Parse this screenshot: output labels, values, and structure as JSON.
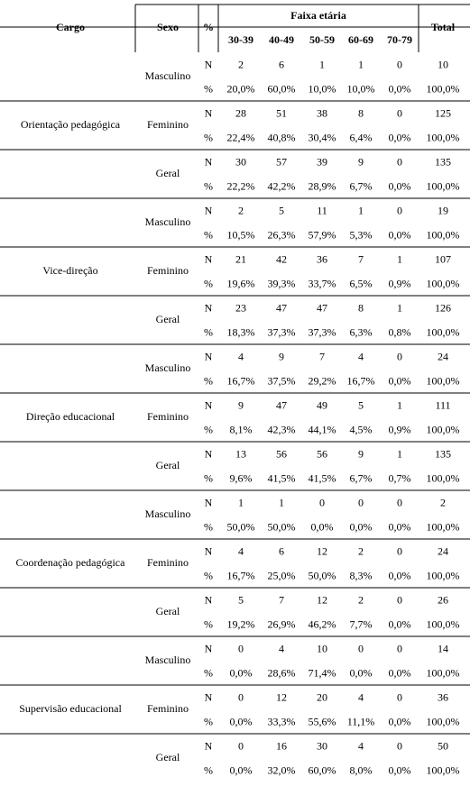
{
  "header": {
    "cargo": "Cargo",
    "sexo": "Sexo",
    "measure": "%",
    "age_group": "Faixa etária",
    "age_ranges": [
      "30-39",
      "40-49",
      "50-59",
      "60-69",
      "70-79"
    ],
    "total": "Total"
  },
  "groups": [
    {
      "cargo": "Orientação pedagógica",
      "subgroups": [
        {
          "sexo": "Masculino",
          "rows": [
            {
              "measure": "N",
              "cells": [
                2,
                6,
                1,
                1,
                0,
                10
              ]
            },
            {
              "measure": "%",
              "cells": [
                "20,0%",
                "60,0%",
                "10,0%",
                "10,0%",
                "0,0%",
                "100,0%"
              ]
            }
          ]
        },
        {
          "sexo": "Feminino",
          "rows": [
            {
              "measure": "N",
              "cells": [
                28,
                51,
                38,
                8,
                0,
                125
              ]
            },
            {
              "measure": "%",
              "cells": [
                "22,4%",
                "40,8%",
                "30,4%",
                "6,4%",
                "0,0%",
                "100,0%"
              ]
            }
          ]
        },
        {
          "sexo": "Geral",
          "rows": [
            {
              "measure": "N",
              "cells": [
                30,
                57,
                39,
                9,
                0,
                135
              ]
            },
            {
              "measure": "%",
              "cells": [
                "22,2%",
                "42,2%",
                "28,9%",
                "6,7%",
                "0,0%",
                "100,0%"
              ]
            }
          ]
        }
      ]
    },
    {
      "cargo": "Vice-direção",
      "subgroups": [
        {
          "sexo": "Masculino",
          "rows": [
            {
              "measure": "N",
              "cells": [
                2,
                5,
                11,
                1,
                0,
                19
              ]
            },
            {
              "measure": "%",
              "cells": [
                "10,5%",
                "26,3%",
                "57,9%",
                "5,3%",
                "0,0%",
                "100,0%"
              ]
            }
          ]
        },
        {
          "sexo": "Feminino",
          "rows": [
            {
              "measure": "N",
              "cells": [
                21,
                42,
                36,
                7,
                1,
                107
              ]
            },
            {
              "measure": "%",
              "cells": [
                "19,6%",
                "39,3%",
                "33,7%",
                "6,5%",
                "0,9%",
                "100,0%"
              ]
            }
          ]
        },
        {
          "sexo": "Geral",
          "rows": [
            {
              "measure": "N",
              "cells": [
                23,
                47,
                47,
                8,
                1,
                126
              ]
            },
            {
              "measure": "%",
              "cells": [
                "18,3%",
                "37,3%",
                "37,3%",
                "6,3%",
                "0,8%",
                "100,0%"
              ]
            }
          ]
        }
      ]
    },
    {
      "cargo": "Direção educacional",
      "subgroups": [
        {
          "sexo": "Masculino",
          "rows": [
            {
              "measure": "N",
              "cells": [
                4,
                9,
                7,
                4,
                0,
                24
              ]
            },
            {
              "measure": "%",
              "cells": [
                "16,7%",
                "37,5%",
                "29,2%",
                "16,7%",
                "0,0%",
                "100,0%"
              ]
            }
          ]
        },
        {
          "sexo": "Feminino",
          "rows": [
            {
              "measure": "N",
              "cells": [
                9,
                47,
                49,
                5,
                1,
                111
              ]
            },
            {
              "measure": "%",
              "cells": [
                "8,1%",
                "42,3%",
                "44,1%",
                "4,5%",
                "0,9%",
                "100,0%"
              ]
            }
          ]
        },
        {
          "sexo": "Geral",
          "rows": [
            {
              "measure": "N",
              "cells": [
                13,
                56,
                56,
                9,
                1,
                135
              ]
            },
            {
              "measure": "%",
              "cells": [
                "9,6%",
                "41,5%",
                "41,5%",
                "6,7%",
                "0,7%",
                "100,0%"
              ]
            }
          ]
        }
      ]
    },
    {
      "cargo": "Coordenação pedagógica",
      "subgroups": [
        {
          "sexo": "Masculino",
          "rows": [
            {
              "measure": "N",
              "cells": [
                1,
                1,
                0,
                0,
                0,
                2
              ]
            },
            {
              "measure": "%",
              "cells": [
                "50,0%",
                "50,0%",
                "0,0%",
                "0,0%",
                "0,0%",
                "100,0%"
              ]
            }
          ]
        },
        {
          "sexo": "Feminino",
          "rows": [
            {
              "measure": "N",
              "cells": [
                4,
                6,
                12,
                2,
                0,
                24
              ]
            },
            {
              "measure": "%",
              "cells": [
                "16,7%",
                "25,0%",
                "50,0%",
                "8,3%",
                "0,0%",
                "100,0%"
              ]
            }
          ]
        },
        {
          "sexo": "Geral",
          "rows": [
            {
              "measure": "N",
              "cells": [
                5,
                7,
                12,
                2,
                0,
                26
              ]
            },
            {
              "measure": "%",
              "cells": [
                "19,2%",
                "26,9%",
                "46,2%",
                "7,7%",
                "0,0%",
                "100,0%"
              ]
            }
          ]
        }
      ]
    },
    {
      "cargo": "Supervisão educacional",
      "subgroups": [
        {
          "sexo": "Masculino",
          "rows": [
            {
              "measure": "N",
              "cells": [
                0,
                4,
                10,
                0,
                0,
                14
              ]
            },
            {
              "measure": "%",
              "cells": [
                "0,0%",
                "28,6%",
                "71,4%",
                "0,0%",
                "0,0%",
                "100,0%"
              ]
            }
          ]
        },
        {
          "sexo": "Feminino",
          "rows": [
            {
              "measure": "N",
              "cells": [
                0,
                12,
                20,
                4,
                0,
                36
              ]
            },
            {
              "measure": "%",
              "cells": [
                "0,0%",
                "33,3%",
                "55,6%",
                "11,1%",
                "0,0%",
                "100,0%"
              ]
            }
          ]
        },
        {
          "sexo": "Geral",
          "rows": [
            {
              "measure": "N",
              "cells": [
                0,
                16,
                30,
                4,
                0,
                50
              ]
            },
            {
              "measure": "%",
              "cells": [
                "0,0%",
                "32,0%",
                "60,0%",
                "8,0%",
                "0,0%",
                "100,0%"
              ]
            }
          ]
        }
      ]
    }
  ]
}
